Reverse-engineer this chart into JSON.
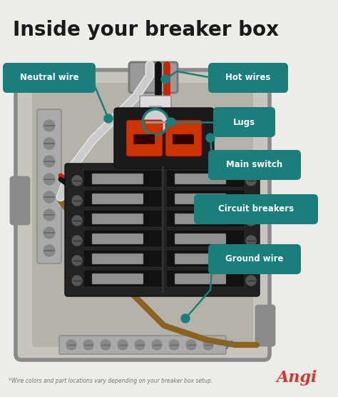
{
  "title": "Inside your breaker box",
  "bg_color": "#eeece8",
  "title_color": "#1a1a1a",
  "title_fontsize": 20,
  "teal_color": "#1a7f7a",
  "footnote": "*Wire colors and part locations vary depending on your breaker box setup.",
  "angi_text": "Angi",
  "angi_color": "#d0392b",
  "box_outer_color": "#8a8a8a",
  "box_inner_color": "#c8c5bc",
  "box_inner_shadow": "#b5b2aa",
  "breaker_panel_color": "#222222",
  "breaker_handle_color": "#909090",
  "main_breaker_color": "#1a1a1a",
  "main_handle_color": "#cc3300",
  "lug_color": "#d0d0d0",
  "wire_white_color": "#e8e8e8",
  "wire_black_color": "#111111",
  "wire_red_color": "#cc2200",
  "wire_ground_color": "#8B6320",
  "neutral_bar_color": "#aaaaaa",
  "conduit_color": "#999999"
}
